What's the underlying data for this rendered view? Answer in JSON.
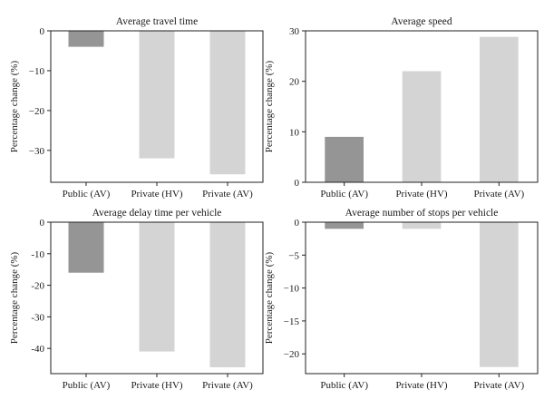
{
  "chart_data": [
    {
      "type": "bar",
      "title": "Average travel time",
      "ylabel": "Percentage change (%)",
      "categories": [
        "Public (AV)",
        "Private (HV)",
        "Private (AV)"
      ],
      "values": [
        -4,
        -32,
        -36
      ],
      "ylim": [
        -38,
        0
      ],
      "yticks": [
        0,
        -10,
        -20,
        -30
      ],
      "ytick_labels": [
        "0",
        "−10",
        "−20",
        "−30"
      ],
      "bar_colors": [
        "#959595",
        "#d4d4d4",
        "#d4d4d4"
      ]
    },
    {
      "type": "bar",
      "title": "Average speed",
      "ylabel": "Percentage change (%)",
      "categories": [
        "Public (AV)",
        "Private (HV)",
        "Private (AV)"
      ],
      "values": [
        9,
        22,
        28.8
      ],
      "ylim": [
        0,
        30
      ],
      "yticks": [
        0,
        10,
        20,
        30
      ],
      "ytick_labels": [
        "0",
        "10",
        "20",
        "30"
      ],
      "bar_colors": [
        "#959595",
        "#d4d4d4",
        "#d4d4d4"
      ]
    },
    {
      "type": "bar",
      "title": "Average delay time per vehicle",
      "ylabel": "Percentage change (%)",
      "categories": [
        "Public (AV)",
        "Private (HV)",
        "Private (AV)"
      ],
      "values": [
        -16,
        -41,
        -46
      ],
      "ylim": [
        -48,
        0
      ],
      "yticks": [
        0,
        -10,
        -20,
        -30,
        -40
      ],
      "ytick_labels": [
        "0",
        "-10",
        "-20",
        "-30",
        "-40"
      ],
      "bar_colors": [
        "#959595",
        "#d4d4d4",
        "#d4d4d4"
      ]
    },
    {
      "type": "bar",
      "title": "Average number of stops per vehicle",
      "ylabel": "Percentage change (%)",
      "categories": [
        "Public (AV)",
        "Private (HV)",
        "Private (AV)"
      ],
      "values": [
        -1,
        -1,
        -22
      ],
      "ylim": [
        -23,
        0
      ],
      "yticks": [
        0,
        -5,
        -10,
        -15,
        -20
      ],
      "ytick_labels": [
        "0",
        "−5",
        "−10",
        "−15",
        "−20"
      ],
      "bar_colors": [
        "#959595",
        "#d4d4d4",
        "#d4d4d4"
      ]
    }
  ]
}
